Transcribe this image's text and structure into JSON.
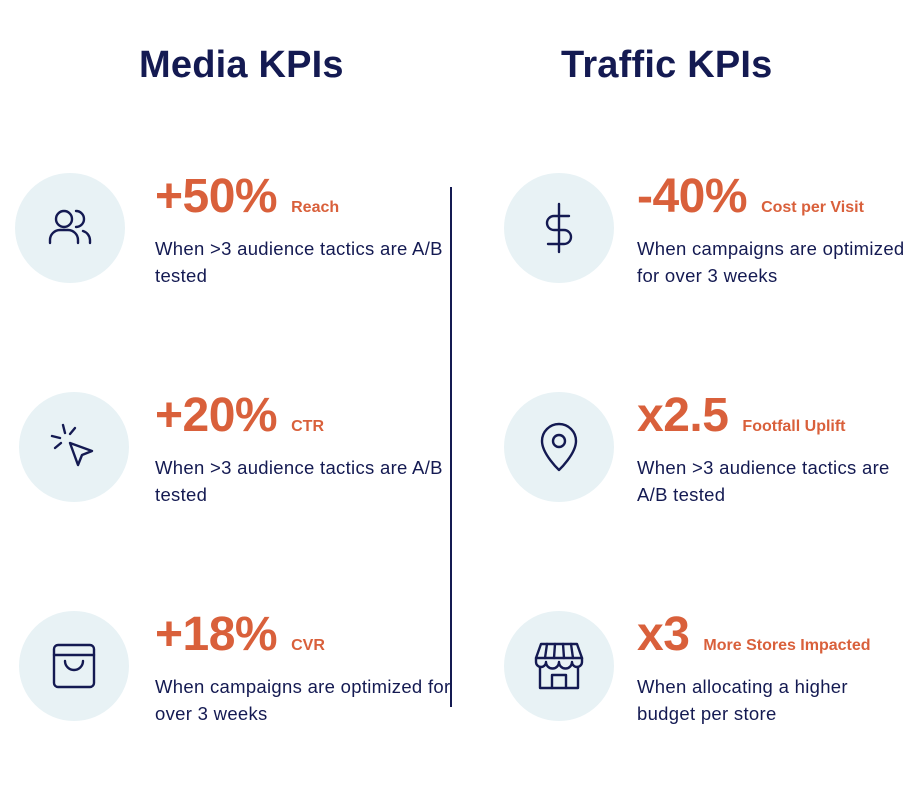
{
  "headings": {
    "media": "Media KPIs",
    "traffic": "Traffic KPIs"
  },
  "media_kpis": [
    {
      "icon": "users-icon",
      "value": "+50%",
      "label": "Reach",
      "description": "When >3 audience tactics are A/B tested"
    },
    {
      "icon": "cursor-click-icon",
      "value": "+20%",
      "label": "CTR",
      "description": "When >3 audience tactics are A/B tested"
    },
    {
      "icon": "shopping-bag-icon",
      "value": "+18%",
      "label": "CVR",
      "description": "When campaigns are optimized for over 3 weeks"
    }
  ],
  "traffic_kpis": [
    {
      "icon": "dollar-icon",
      "value": "-40%",
      "label": "Cost per Visit",
      "description": "When campaigns are optimized for over 3 weeks"
    },
    {
      "icon": "map-pin-icon",
      "value": "x2.5",
      "label": "Footfall Uplift",
      "description": "When >3 audience tactics are A/B tested"
    },
    {
      "icon": "storefront-icon",
      "value": "x3",
      "label": "More Stores Impacted",
      "description": "When allocating a higher budget per store"
    }
  ],
  "colors": {
    "navy": "#141a52",
    "accent": "#d9603b",
    "icon_bg": "#e8f2f5"
  }
}
